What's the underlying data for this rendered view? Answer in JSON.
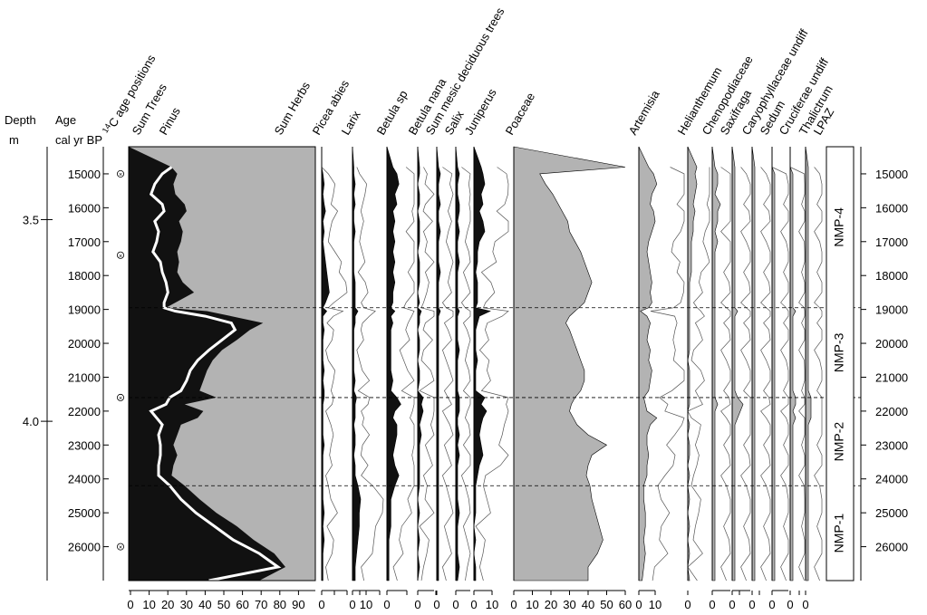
{
  "chart_data": {
    "type": "area",
    "chart_kind": "pollen stratigraphic diagram",
    "depth_axis": {
      "label_line1": "Depth",
      "label_line2": "m",
      "ticks": [
        {
          "label": "3.5",
          "age": 16350
        },
        {
          "label": "4.0",
          "age": 22300
        }
      ]
    },
    "age_axis": {
      "label_line1": "Age",
      "label_line2": "cal yr BP",
      "min": 14200,
      "max": 27000,
      "ticks": [
        15000,
        16000,
        17000,
        18000,
        19000,
        20000,
        21000,
        22000,
        23000,
        24000,
        25000,
        26000
      ]
    },
    "c14_label": "14C age positions",
    "c14_ages": [
      15000,
      17400,
      21600,
      26000
    ],
    "zones": [
      {
        "name": "NMP-4",
        "top": 14200,
        "bottom": 18950
      },
      {
        "name": "NMP-3",
        "top": 18950,
        "bottom": 21600
      },
      {
        "name": "NMP-2",
        "top": 21600,
        "bottom": 24200
      },
      {
        "name": "NMP-1",
        "top": 24200,
        "bottom": 27000
      }
    ],
    "zone_column_label": "LPAZ",
    "boundaries": [
      18950,
      21600,
      24200
    ],
    "sample_ages": [
      14800,
      15000,
      15300,
      15600,
      15900,
      16100,
      16400,
      16700,
      17000,
      17300,
      17600,
      17900,
      18200,
      18500,
      18800,
      18950,
      19050,
      19200,
      19400,
      19600,
      19900,
      20200,
      20500,
      20800,
      21100,
      21400,
      21600,
      21800,
      22000,
      22200,
      22400,
      22700,
      23000,
      23300,
      23600,
      23900,
      24200,
      24600,
      25000,
      25400,
      25800,
      26200,
      26600,
      27000
    ],
    "main_panel": {
      "series": [
        {
          "name": "Sum Trees",
          "role": "black-fill",
          "values": [
            23,
            26,
            24,
            25,
            30,
            31,
            27,
            29,
            28,
            26,
            27,
            26,
            29,
            35,
            25,
            20,
            42,
            55,
            72,
            65,
            58,
            50,
            45,
            42,
            40,
            38,
            47,
            30,
            40,
            37,
            28,
            26,
            24,
            26,
            24,
            23,
            30,
            38,
            47,
            58,
            67,
            78,
            84,
            70
          ]
        },
        {
          "name": "Pinus",
          "role": "white-line",
          "values": [
            23,
            18,
            14,
            12,
            18,
            19,
            14,
            16,
            15,
            13,
            17,
            18,
            20,
            21,
            19,
            19,
            25,
            41,
            55,
            57,
            50,
            43,
            37,
            33,
            31,
            28,
            22,
            20,
            12,
            15,
            18,
            16,
            17,
            17,
            16,
            16,
            22,
            28,
            36,
            46,
            56,
            70,
            80,
            43
          ]
        },
        {
          "name": "Sum Herbs",
          "role": "grey-fill",
          "note": "100 - Sum Trees"
        }
      ],
      "xmin": 0,
      "xmax": 100,
      "tick_labels": [
        "0",
        "10",
        "20",
        "30",
        "40",
        "50",
        "60",
        "70",
        "80",
        "90"
      ]
    },
    "taxa": [
      {
        "name": "Picea abies",
        "values": [
          0,
          1,
          2,
          1,
          2,
          3,
          1,
          2,
          1,
          2,
          3,
          4,
          5,
          6,
          3,
          1,
          4,
          1,
          1,
          2,
          1,
          1,
          1,
          2,
          1,
          2,
          2,
          1,
          1,
          1,
          1,
          1,
          2,
          1,
          1,
          1,
          1,
          1,
          2,
          1,
          2,
          1,
          1,
          1
        ],
        "tick_labels": [
          "0",
          "",
          "",
          ""
        ]
      },
      {
        "name": "Larix",
        "values": [
          1,
          1,
          2,
          1,
          2,
          1,
          1,
          2,
          1,
          1,
          1,
          1,
          2,
          2,
          2,
          2,
          4,
          2,
          2,
          1,
          1,
          1,
          1,
          1,
          2,
          1,
          3,
          2,
          2,
          2,
          1,
          2,
          2,
          1,
          2,
          2,
          4,
          6,
          5,
          5,
          4,
          3,
          2,
          2
        ],
        "tick_labels": [
          "0",
          "10",
          ""
        ]
      },
      {
        "name": "Betula sp",
        "values": [
          3,
          5,
          6,
          4,
          5,
          3,
          4,
          3,
          4,
          3,
          4,
          3,
          4,
          3,
          3,
          2,
          4,
          2,
          3,
          2,
          2,
          2,
          2,
          2,
          3,
          2,
          5,
          7,
          4,
          3,
          5,
          5,
          4,
          3,
          4,
          6,
          4,
          2,
          2,
          2,
          1,
          1,
          1,
          1
        ],
        "tick_labels": [
          "0",
          ""
        ]
      },
      {
        "name": "Betula nana",
        "values": [
          1,
          1,
          0,
          1,
          1,
          0,
          1,
          1,
          1,
          0,
          1,
          1,
          1,
          0,
          1,
          0,
          2,
          1,
          1,
          0,
          1,
          1,
          0,
          1,
          1,
          0,
          3,
          2,
          3,
          2,
          1,
          2,
          1,
          1,
          1,
          1,
          1,
          0,
          1,
          0,
          1,
          0,
          1,
          0
        ],
        "tick_labels": [
          "0",
          ""
        ]
      },
      {
        "name": "Sum mesic deciduous trees",
        "values": [
          1,
          2,
          1,
          1,
          2,
          1,
          1,
          2,
          1,
          1,
          1,
          2,
          1,
          1,
          1,
          1,
          2,
          1,
          1,
          1,
          1,
          1,
          1,
          1,
          1,
          1,
          1,
          1,
          1,
          1,
          1,
          1,
          1,
          1,
          1,
          1,
          1,
          1,
          1,
          1,
          1,
          1,
          1,
          1
        ],
        "tick_labels": [
          "0"
        ]
      },
      {
        "name": "Salix",
        "values": [
          1,
          2,
          1,
          1,
          2,
          2,
          1,
          2,
          1,
          1,
          2,
          1,
          1,
          1,
          1,
          1,
          2,
          1,
          1,
          1,
          1,
          2,
          1,
          1,
          1,
          1,
          2,
          2,
          2,
          1,
          1,
          2,
          1,
          2,
          1,
          1,
          1,
          1,
          2,
          1,
          1,
          1,
          2,
          1
        ],
        "tick_labels": [
          "0",
          ""
        ]
      },
      {
        "name": "Juniperus",
        "values": [
          4,
          5,
          6,
          4,
          5,
          3,
          5,
          6,
          3,
          2,
          2,
          1,
          2,
          2,
          2,
          1,
          9,
          3,
          2,
          1,
          1,
          1,
          2,
          1,
          1,
          1,
          6,
          4,
          7,
          5,
          4,
          3,
          4,
          5,
          3,
          2,
          1,
          1,
          1,
          0,
          1,
          0,
          1,
          1
        ],
        "tick_labels": [
          "0",
          "10"
        ]
      },
      {
        "name": "Poaceae",
        "values": [
          60,
          14,
          17,
          21,
          24,
          26,
          29,
          30,
          33,
          36,
          38,
          40,
          42,
          40,
          38,
          35,
          33,
          30,
          28,
          30,
          32,
          34,
          36,
          38,
          38,
          36,
          33,
          31,
          30,
          32,
          34,
          40,
          50,
          42,
          40,
          39,
          41,
          42,
          44,
          46,
          48,
          45,
          40,
          40
        ],
        "tick_labels": [
          "0",
          "10",
          "20",
          "30",
          "40",
          "50",
          "60"
        ]
      },
      {
        "name": "Artemisia",
        "values": [
          6,
          9,
          11,
          8,
          7,
          9,
          10,
          8,
          6,
          5,
          6,
          7,
          8,
          7,
          8,
          6,
          1,
          5,
          7,
          6,
          5,
          7,
          6,
          8,
          7,
          6,
          3,
          4,
          5,
          11,
          7,
          5,
          5,
          6,
          5,
          5,
          3,
          3,
          4,
          4,
          3,
          4,
          3,
          2
        ],
        "tick_labels": [
          "0",
          "10"
        ]
      },
      {
        "name": "Helianthemum",
        "values": [
          5,
          4,
          5,
          4,
          3,
          4,
          3,
          3,
          2,
          2,
          2,
          2,
          1,
          1,
          1,
          1,
          1,
          1,
          1,
          1,
          1,
          1,
          0,
          1,
          1,
          1,
          1,
          1,
          0,
          0,
          1,
          0,
          1,
          1,
          0,
          1,
          0,
          1,
          0,
          1,
          0,
          1,
          0,
          1
        ],
        "tick_labels": [
          "0"
        ]
      },
      {
        "name": "Chenopodiaceae",
        "values": [
          1,
          2,
          2,
          1,
          3,
          2,
          2,
          1,
          2,
          1,
          1,
          1,
          1,
          1,
          1,
          1,
          1,
          1,
          1,
          1,
          1,
          1,
          1,
          1,
          1,
          1,
          1,
          2,
          1,
          1,
          1,
          1,
          1,
          1,
          1,
          1,
          1,
          1,
          1,
          1,
          1,
          1,
          1,
          1
        ],
        "tick_labels": [
          "0",
          ""
        ]
      },
      {
        "name": "Saxifraga",
        "values": [
          1,
          1,
          1,
          1,
          1,
          1,
          1,
          1,
          1,
          1,
          1,
          1,
          1,
          1,
          1,
          1,
          2,
          1,
          1,
          1,
          1,
          1,
          1,
          1,
          1,
          1,
          2,
          4,
          3,
          2,
          1,
          1,
          1,
          1,
          1,
          1,
          1,
          1,
          1,
          1,
          1,
          1,
          1,
          1
        ],
        "tick_labels": [
          "0",
          ""
        ]
      },
      {
        "name": "Caryophyllaceae undiff",
        "values": [
          1,
          1,
          1,
          1,
          1,
          1,
          1,
          1,
          1,
          1,
          1,
          1,
          1,
          1,
          1,
          1,
          1,
          1,
          1,
          1,
          1,
          1,
          1,
          1,
          1,
          1,
          1,
          1,
          1,
          1,
          1,
          1,
          1,
          1,
          1,
          1,
          1,
          1,
          1,
          1,
          1,
          1,
          1,
          1
        ],
        "tick_labels": [
          "0"
        ]
      },
      {
        "name": "Sedum",
        "values": [
          0,
          1,
          1,
          1,
          1,
          1,
          1,
          1,
          1,
          1,
          1,
          1,
          1,
          1,
          1,
          1,
          1,
          1,
          1,
          1,
          1,
          1,
          1,
          1,
          1,
          1,
          1,
          1,
          1,
          1,
          1,
          1,
          1,
          1,
          1,
          1,
          1,
          1,
          1,
          1,
          1,
          1,
          1,
          1
        ],
        "tick_labels": [
          "0",
          ""
        ]
      },
      {
        "name": "Cruciferae undiff",
        "values": [
          0,
          1,
          1,
          1,
          1,
          1,
          1,
          1,
          1,
          1,
          1,
          1,
          1,
          1,
          1,
          1,
          2,
          1,
          1,
          1,
          1,
          1,
          1,
          1,
          1,
          1,
          2,
          2,
          1,
          2,
          1,
          1,
          1,
          1,
          1,
          1,
          1,
          1,
          1,
          1,
          1,
          1,
          1,
          1
        ],
        "tick_labels": [
          "0"
        ]
      },
      {
        "name": "Thalictrum",
        "values": [
          1,
          1,
          1,
          1,
          1,
          1,
          1,
          1,
          1,
          1,
          1,
          1,
          1,
          1,
          1,
          1,
          1,
          1,
          1,
          1,
          1,
          1,
          1,
          1,
          1,
          1,
          2,
          2,
          2,
          2,
          1,
          1,
          1,
          1,
          1,
          1,
          1,
          1,
          1,
          1,
          1,
          1,
          1,
          1
        ],
        "tick_labels": [
          "0"
        ]
      }
    ]
  }
}
